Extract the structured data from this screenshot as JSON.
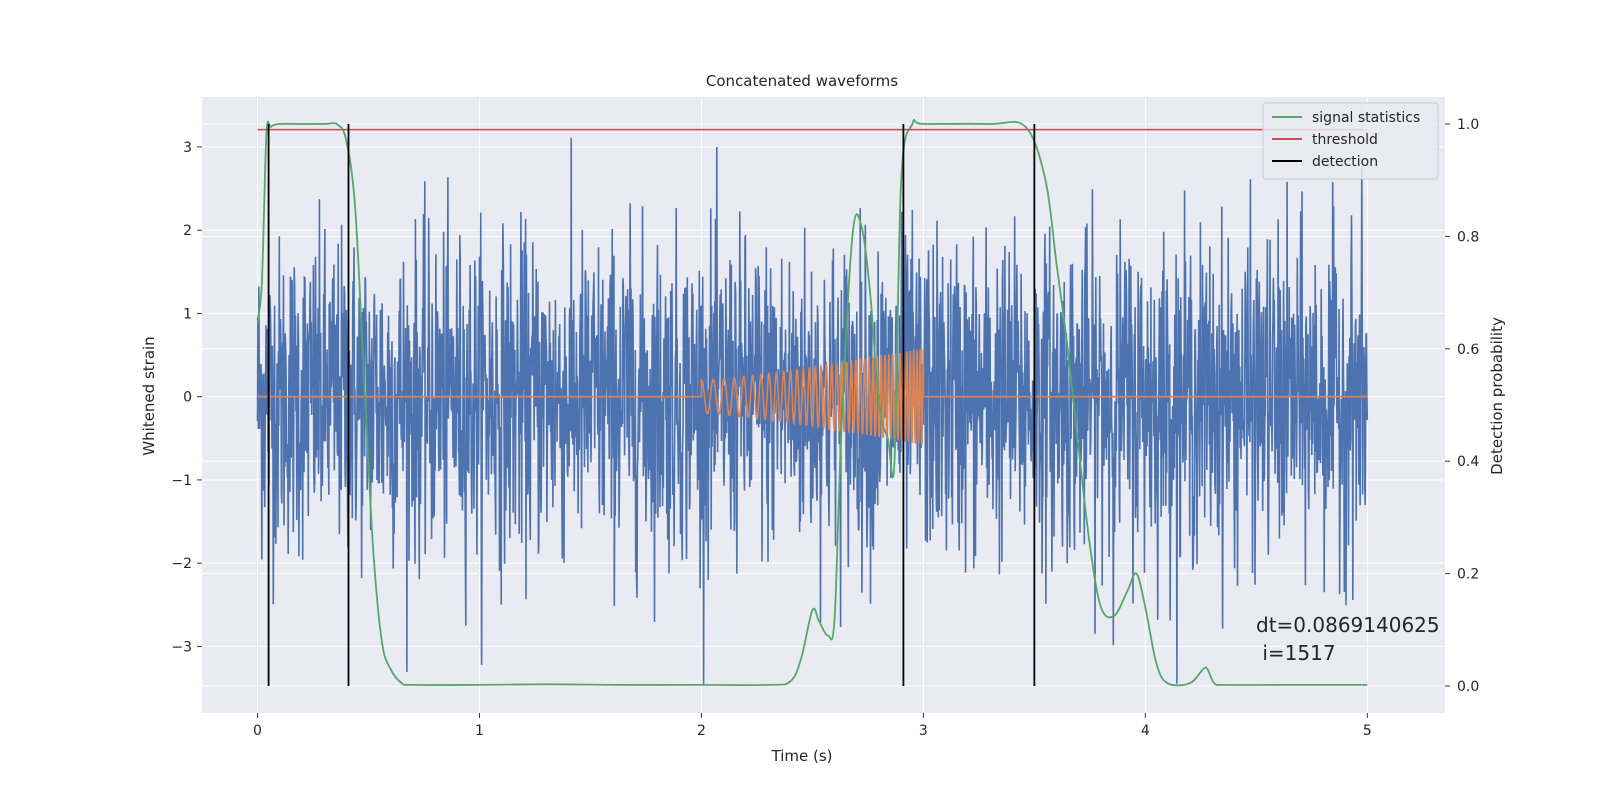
{
  "chart_data": {
    "type": "line",
    "title": "Concatenated waveforms",
    "xlabel": "Time (s)",
    "ylabel": "Whitened strain",
    "y2label": "Detection probability",
    "xlim": [
      -0.25,
      5.35
    ],
    "ylim": [
      -3.8,
      3.6
    ],
    "y2lim": [
      -0.048,
      1.048
    ],
    "xticks": [
      0,
      1,
      2,
      3,
      4,
      5
    ],
    "yticks": [
      -3,
      -2,
      -1,
      0,
      1,
      2,
      3
    ],
    "y2ticks": [
      0.0,
      0.2,
      0.4,
      0.6,
      0.8,
      1.0
    ],
    "grid": true,
    "legend_position": "top-right",
    "colors": {
      "background": "#EAEAF2",
      "strain": "#4C72B0",
      "template": "#DD8452",
      "statistics": "#55A868",
      "threshold": "#C44E52",
      "detection": "#000000"
    },
    "series": [
      {
        "name": "signal statistics",
        "axis": "right",
        "x": [
          0.0,
          0.02,
          0.04,
          0.06,
          0.1,
          0.2,
          0.3,
          0.36,
          0.4,
          0.44,
          0.48,
          0.52,
          0.56,
          0.6,
          0.65,
          0.7,
          1.0,
          1.3,
          1.6,
          2.0,
          2.3,
          2.4,
          2.45,
          2.5,
          2.53,
          2.57,
          2.6,
          2.63,
          2.68,
          2.72,
          2.76,
          2.8,
          2.84,
          2.87,
          2.9,
          2.95,
          3.0,
          3.3,
          3.46,
          3.55,
          3.6,
          3.65,
          3.7,
          3.75,
          3.8,
          3.86,
          3.92,
          3.96,
          4.0,
          4.05,
          4.1,
          4.2,
          4.26,
          4.28,
          4.31,
          4.36,
          4.6,
          5.0
        ],
        "values": [
          0.65,
          0.72,
          0.98,
          0.995,
          1.0,
          1.0,
          1.0,
          0.999,
          0.97,
          0.85,
          0.55,
          0.25,
          0.08,
          0.03,
          0.005,
          0.002,
          0.002,
          0.003,
          0.002,
          0.002,
          0.002,
          0.008,
          0.05,
          0.135,
          0.115,
          0.09,
          0.12,
          0.45,
          0.8,
          0.82,
          0.7,
          0.5,
          0.44,
          0.4,
          0.9,
          1.0,
          1.0,
          1.0,
          0.995,
          0.9,
          0.75,
          0.6,
          0.42,
          0.25,
          0.14,
          0.125,
          0.17,
          0.2,
          0.14,
          0.04,
          0.005,
          0.005,
          0.03,
          0.03,
          0.005,
          0.002,
          0.002,
          0.002
        ]
      },
      {
        "name": "threshold",
        "axis": "right",
        "x": [
          0.0,
          5.0
        ],
        "values": [
          0.99,
          0.99
        ]
      },
      {
        "name": "detection",
        "axis": "right",
        "x": [
          0.05,
          0.41,
          2.91,
          3.5
        ],
        "values": [
          1.0,
          1.0,
          1.0,
          1.0
        ]
      }
    ],
    "annotation": {
      "line1": "dt=0.0869140625",
      "line2": " i=1517"
    }
  }
}
